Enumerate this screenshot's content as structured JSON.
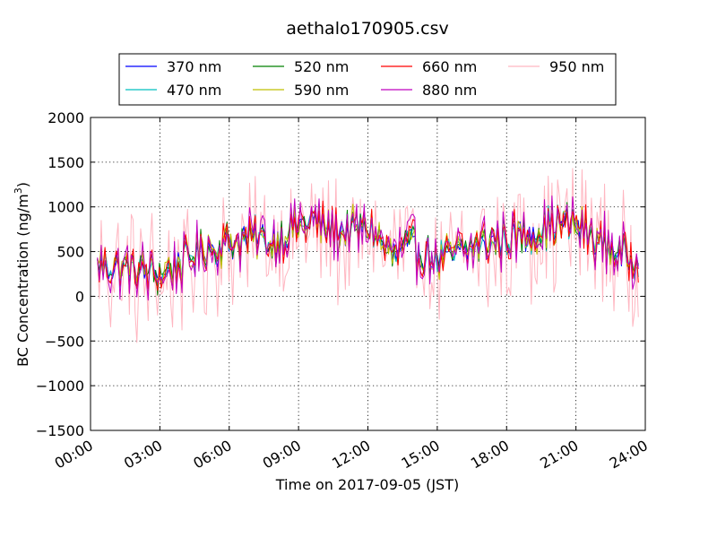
{
  "chart_data": {
    "type": "line",
    "title": "aethalo170905.csv",
    "xlabel": "Time on 2017-09-05 (JST)",
    "ylabel_main": "BC Concentration (ng/m",
    "ylabel_sup": "3",
    "ylabel_close": ")",
    "xlim": [
      "2017-09-05 00:00",
      "2017-09-06 00:00"
    ],
    "ylim": [
      -1500,
      2000
    ],
    "x_ticks": [
      "00:00",
      "03:00",
      "06:00",
      "09:00",
      "12:00",
      "15:00",
      "18:00",
      "21:00",
      "24:00"
    ],
    "y_ticks": [
      "−1500",
      "−1000",
      "−500",
      "0",
      "500",
      "1000",
      "1500",
      "2000"
    ],
    "y_tick_values": [
      -1500,
      -1000,
      -500,
      0,
      500,
      1000,
      1500,
      2000
    ],
    "grid": true,
    "legend_placement": "top (above plot, 4 columns)",
    "sampling_note_hours": [
      0,
      24
    ],
    "series": [
      {
        "name": "370 nm",
        "color": "#0000ff",
        "level": [
          [
            0,
            400
          ],
          [
            1,
            350
          ],
          [
            2,
            300
          ],
          [
            3,
            250
          ],
          [
            4,
            400
          ],
          [
            5,
            550
          ],
          [
            6,
            600
          ],
          [
            7,
            650
          ],
          [
            8,
            600
          ],
          [
            9,
            800
          ],
          [
            10,
            800
          ],
          [
            11,
            700
          ],
          [
            12,
            800
          ],
          [
            13,
            450
          ],
          [
            14,
            550
          ],
          [
            15,
            400
          ],
          [
            16,
            500
          ],
          [
            17,
            600
          ],
          [
            18,
            650
          ],
          [
            19,
            700
          ],
          [
            20,
            800
          ],
          [
            21,
            800
          ],
          [
            22,
            600
          ],
          [
            23,
            450
          ],
          [
            24,
            400
          ]
        ],
        "amp": 260,
        "seed": 11
      },
      {
        "name": "470 nm",
        "color": "#00bfbf",
        "level": [
          [
            0,
            400
          ],
          [
            1,
            350
          ],
          [
            2,
            300
          ],
          [
            3,
            250
          ],
          [
            4,
            400
          ],
          [
            5,
            550
          ],
          [
            6,
            600
          ],
          [
            7,
            650
          ],
          [
            8,
            600
          ],
          [
            9,
            800
          ],
          [
            10,
            800
          ],
          [
            11,
            700
          ],
          [
            12,
            800
          ],
          [
            13,
            450
          ],
          [
            14,
            550
          ],
          [
            15,
            400
          ],
          [
            16,
            500
          ],
          [
            17,
            600
          ],
          [
            18,
            650
          ],
          [
            19,
            700
          ],
          [
            20,
            800
          ],
          [
            21,
            800
          ],
          [
            22,
            600
          ],
          [
            23,
            450
          ],
          [
            24,
            400
          ]
        ],
        "amp": 270,
        "seed": 23
      },
      {
        "name": "520 nm",
        "color": "#008000",
        "level": [
          [
            0,
            400
          ],
          [
            1,
            350
          ],
          [
            2,
            300
          ],
          [
            3,
            250
          ],
          [
            4,
            400
          ],
          [
            5,
            550
          ],
          [
            6,
            600
          ],
          [
            7,
            650
          ],
          [
            8,
            600
          ],
          [
            9,
            800
          ],
          [
            10,
            800
          ],
          [
            11,
            700
          ],
          [
            12,
            800
          ],
          [
            13,
            450
          ],
          [
            14,
            550
          ],
          [
            15,
            400
          ],
          [
            16,
            500
          ],
          [
            17,
            600
          ],
          [
            18,
            650
          ],
          [
            19,
            700
          ],
          [
            20,
            800
          ],
          [
            21,
            800
          ],
          [
            22,
            600
          ],
          [
            23,
            450
          ],
          [
            24,
            400
          ]
        ],
        "amp": 280,
        "seed": 37
      },
      {
        "name": "590 nm",
        "color": "#bfbf00",
        "level": [
          [
            0,
            400
          ],
          [
            1,
            350
          ],
          [
            2,
            300
          ],
          [
            3,
            250
          ],
          [
            4,
            400
          ],
          [
            5,
            550
          ],
          [
            6,
            600
          ],
          [
            7,
            650
          ],
          [
            8,
            600
          ],
          [
            9,
            800
          ],
          [
            10,
            800
          ],
          [
            11,
            700
          ],
          [
            12,
            800
          ],
          [
            13,
            450
          ],
          [
            14,
            550
          ],
          [
            15,
            400
          ],
          [
            16,
            500
          ],
          [
            17,
            600
          ],
          [
            18,
            650
          ],
          [
            19,
            700
          ],
          [
            20,
            800
          ],
          [
            21,
            800
          ],
          [
            22,
            600
          ],
          [
            23,
            450
          ],
          [
            24,
            400
          ]
        ],
        "amp": 300,
        "seed": 41
      },
      {
        "name": "660 nm",
        "color": "#ff0000",
        "level": [
          [
            0,
            400
          ],
          [
            1,
            350
          ],
          [
            2,
            300
          ],
          [
            3,
            250
          ],
          [
            4,
            400
          ],
          [
            5,
            550
          ],
          [
            6,
            600
          ],
          [
            7,
            650
          ],
          [
            8,
            600
          ],
          [
            9,
            800
          ],
          [
            10,
            800
          ],
          [
            11,
            700
          ],
          [
            12,
            800
          ],
          [
            13,
            450
          ],
          [
            14,
            550
          ],
          [
            15,
            400
          ],
          [
            16,
            500
          ],
          [
            17,
            600
          ],
          [
            18,
            650
          ],
          [
            19,
            700
          ],
          [
            20,
            800
          ],
          [
            21,
            800
          ],
          [
            22,
            600
          ],
          [
            23,
            450
          ],
          [
            24,
            400
          ]
        ],
        "amp": 330,
        "seed": 53
      },
      {
        "name": "880 nm",
        "color": "#bf00bf",
        "level": [
          [
            0,
            400
          ],
          [
            1,
            350
          ],
          [
            2,
            300
          ],
          [
            3,
            250
          ],
          [
            4,
            400
          ],
          [
            5,
            550
          ],
          [
            6,
            600
          ],
          [
            7,
            650
          ],
          [
            8,
            600
          ],
          [
            9,
            800
          ],
          [
            10,
            800
          ],
          [
            11,
            700
          ],
          [
            12,
            800
          ],
          [
            13,
            450
          ],
          [
            14,
            550
          ],
          [
            15,
            400
          ],
          [
            16,
            500
          ],
          [
            17,
            600
          ],
          [
            18,
            650
          ],
          [
            19,
            700
          ],
          [
            20,
            800
          ],
          [
            21,
            800
          ],
          [
            22,
            600
          ],
          [
            23,
            450
          ],
          [
            24,
            400
          ]
        ],
        "amp": 420,
        "seed": 67
      },
      {
        "name": "950 nm",
        "color": "#ffb6c1",
        "level": [
          [
            0,
            350
          ],
          [
            1,
            300
          ],
          [
            2,
            250
          ],
          [
            3,
            250
          ],
          [
            4,
            350
          ],
          [
            5,
            500
          ],
          [
            6,
            550
          ],
          [
            7,
            600
          ],
          [
            8,
            600
          ],
          [
            9,
            750
          ],
          [
            10,
            750
          ],
          [
            11,
            650
          ],
          [
            12,
            750
          ],
          [
            13,
            400
          ],
          [
            14,
            450
          ],
          [
            15,
            350
          ],
          [
            16,
            450
          ],
          [
            17,
            550
          ],
          [
            18,
            600
          ],
          [
            19,
            650
          ],
          [
            20,
            750
          ],
          [
            21,
            750
          ],
          [
            22,
            550
          ],
          [
            23,
            400
          ],
          [
            24,
            350
          ]
        ],
        "amp": 850,
        "seed": 79
      }
    ]
  }
}
